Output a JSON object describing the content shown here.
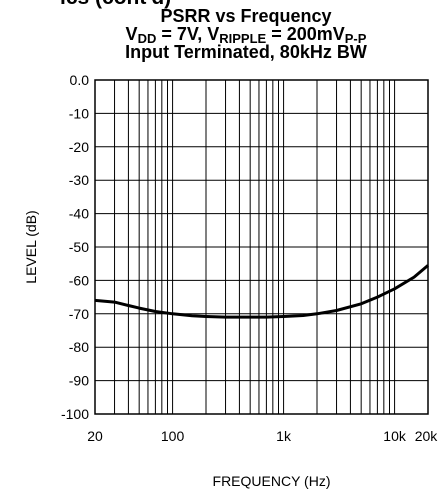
{
  "cut_off_header": "ics (cont'd)",
  "title": {
    "line1": "PSRR vs Frequency",
    "line2_prefix": "V",
    "line2_sub1": "DD",
    "line2_mid": " = 7V, V",
    "line2_sub2": "RIPPLE",
    "line2_suffix": " = 200mV",
    "line2_sub3": "P-P",
    "line3": "Input Terminated, 80kHz BW"
  },
  "chart_data": {
    "type": "line",
    "title": "PSRR vs Frequency",
    "xlabel": "FREQUENCY (Hz)",
    "ylabel": "LEVEL (dB)",
    "xscale": "log",
    "xlim": [
      20,
      20000
    ],
    "ylim": [
      -100,
      0
    ],
    "grid": true,
    "x_tick_labels": [
      {
        "value": 20,
        "label": "20"
      },
      {
        "value": 100,
        "label": "100"
      },
      {
        "value": 1000,
        "label": "1k"
      },
      {
        "value": 10000,
        "label": "10k"
      },
      {
        "value": 20000,
        "label": "20k"
      }
    ],
    "y_tick_labels": [
      "0.0",
      "-10",
      "-20",
      "-30",
      "-40",
      "-50",
      "-60",
      "-70",
      "-80",
      "-90",
      "-100"
    ],
    "series": [
      {
        "x": [
          20,
          30,
          40,
          50,
          70,
          100,
          150,
          200,
          300,
          500,
          700,
          1000,
          1500,
          2000,
          3000,
          5000,
          7000,
          10000,
          15000,
          20000
        ],
        "y": [
          -66.0,
          -66.5,
          -67.5,
          -68.3,
          -69.3,
          -70.0,
          -70.6,
          -70.8,
          -71.0,
          -71.0,
          -71.0,
          -70.8,
          -70.5,
          -70.0,
          -69.0,
          -67.0,
          -65.0,
          -62.5,
          -59.0,
          -55.5
        ]
      }
    ]
  }
}
